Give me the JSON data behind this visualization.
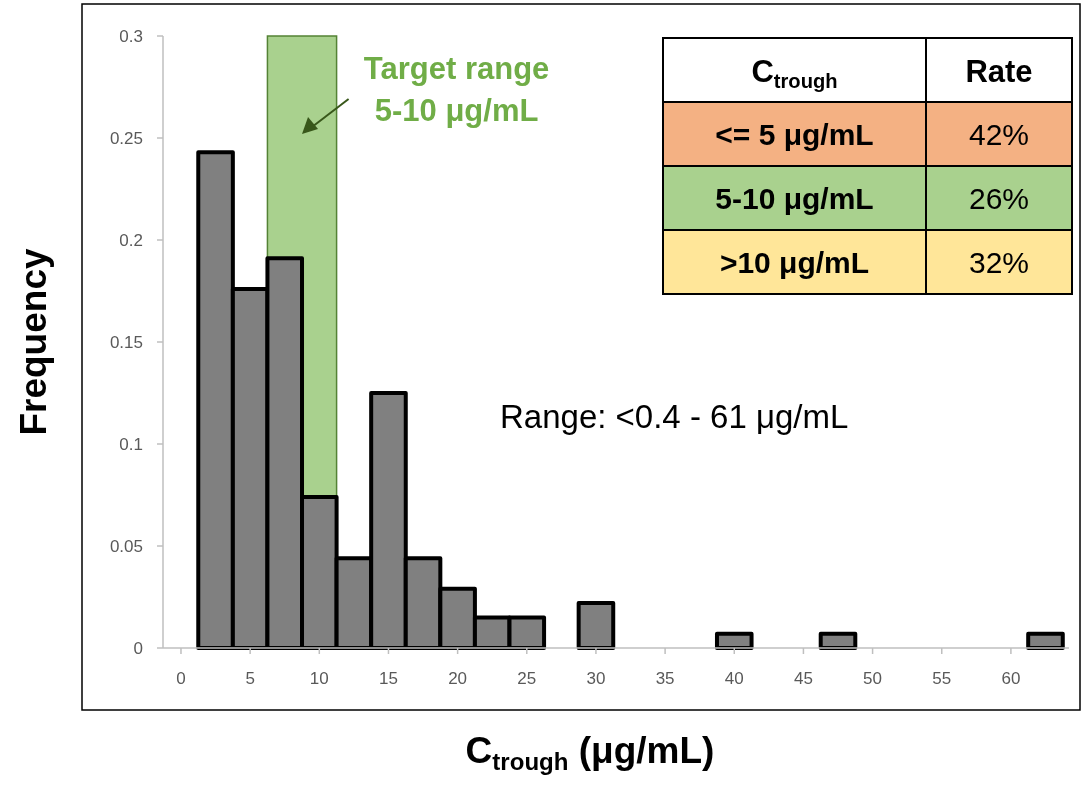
{
  "chart_data": [
    {
      "type": "histogram",
      "xlabel": "C$_{trough}$ (μg/mL)",
      "ylabel": "Frequency",
      "bins": [
        1.25,
        3.75,
        6.25,
        8.75,
        11.25,
        13.75,
        16.25,
        18.75,
        21.25,
        23.75,
        26.25,
        28.75,
        31.25,
        33.75,
        36.25,
        38.75,
        41.25,
        43.75,
        46.25,
        48.75,
        51.25,
        53.75,
        56.25,
        58.75,
        61.25,
        63.75
      ],
      "values": [
        0.243,
        0.176,
        0.191,
        0.074,
        0.044,
        0.125,
        0.044,
        0.029,
        0.015,
        0.015,
        0,
        0.022,
        0,
        0,
        0,
        0.007,
        0,
        0,
        0.007,
        0,
        0,
        0,
        0,
        0,
        0.007
      ],
      "color": "#808080",
      "xlim": [
        -1.3,
        64.2
      ],
      "xticks": [
        0,
        5,
        10,
        15,
        20,
        25,
        30,
        35,
        40,
        45,
        50,
        55,
        60
      ],
      "ylim": [
        0,
        0.3
      ],
      "yticks": [
        0,
        0.05,
        0.1,
        0.15,
        0.2,
        0.25,
        0.3
      ],
      "grid": false,
      "bands": [
        {
          "axis": "x",
          "from": 6.25,
          "to": 11.25,
          "label": "Target range\n5-10 μg/mL",
          "color": "#a9d18e"
        }
      ],
      "annotations": [
        "Range: <0.4 - 61 μg/mL"
      ]
    },
    {
      "type": "other",
      "annotations": [
        "C$_{trough}$",
        "Rate"
      ],
      "categories": [
        "<= 5 μg/mL",
        "5-10 μg/mL",
        ">10 μg/mL"
      ],
      "value_labels": [
        "42%",
        "26%",
        "32%"
      ],
      "colors": [
        "#f4b183",
        "#a9d18e",
        "#ffe699"
      ]
    }
  ]
}
